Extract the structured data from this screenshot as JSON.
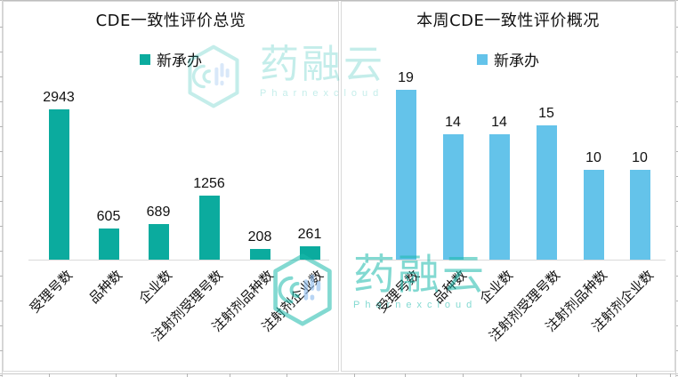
{
  "watermark": {
    "brand": "药融云",
    "brand_sub": "Pharnexcloud",
    "color": "#1BB9AC",
    "accent_color": "#8FBCEE"
  },
  "chart_data": [
    {
      "type": "bar",
      "title": "CDE一致性评价总览",
      "legend": "新承办",
      "legend_position": "top",
      "bar_color": "#0BAB9E",
      "categories": [
        "受理号数",
        "品种数",
        "企业数",
        "注射剂受理号数",
        "注射剂品种数",
        "注射剂企业数"
      ],
      "values": [
        2943,
        605,
        689,
        1256,
        208,
        261
      ],
      "ylim": [
        0,
        3500
      ],
      "data_labels": true,
      "grid": false,
      "y_axis_visible": false
    },
    {
      "type": "bar",
      "title": "本周CDE一致性评价概况",
      "legend": "新承办",
      "legend_position": "top",
      "bar_color": "#64C3EA",
      "categories": [
        "受理号数",
        "品种数",
        "企业数",
        "注射剂受理号数",
        "注射剂品种数",
        "注射剂企业数"
      ],
      "values": [
        19,
        14,
        14,
        15,
        10,
        10
      ],
      "ylim": [
        0,
        20
      ],
      "data_labels": true,
      "grid": false,
      "y_axis_visible": false
    }
  ]
}
